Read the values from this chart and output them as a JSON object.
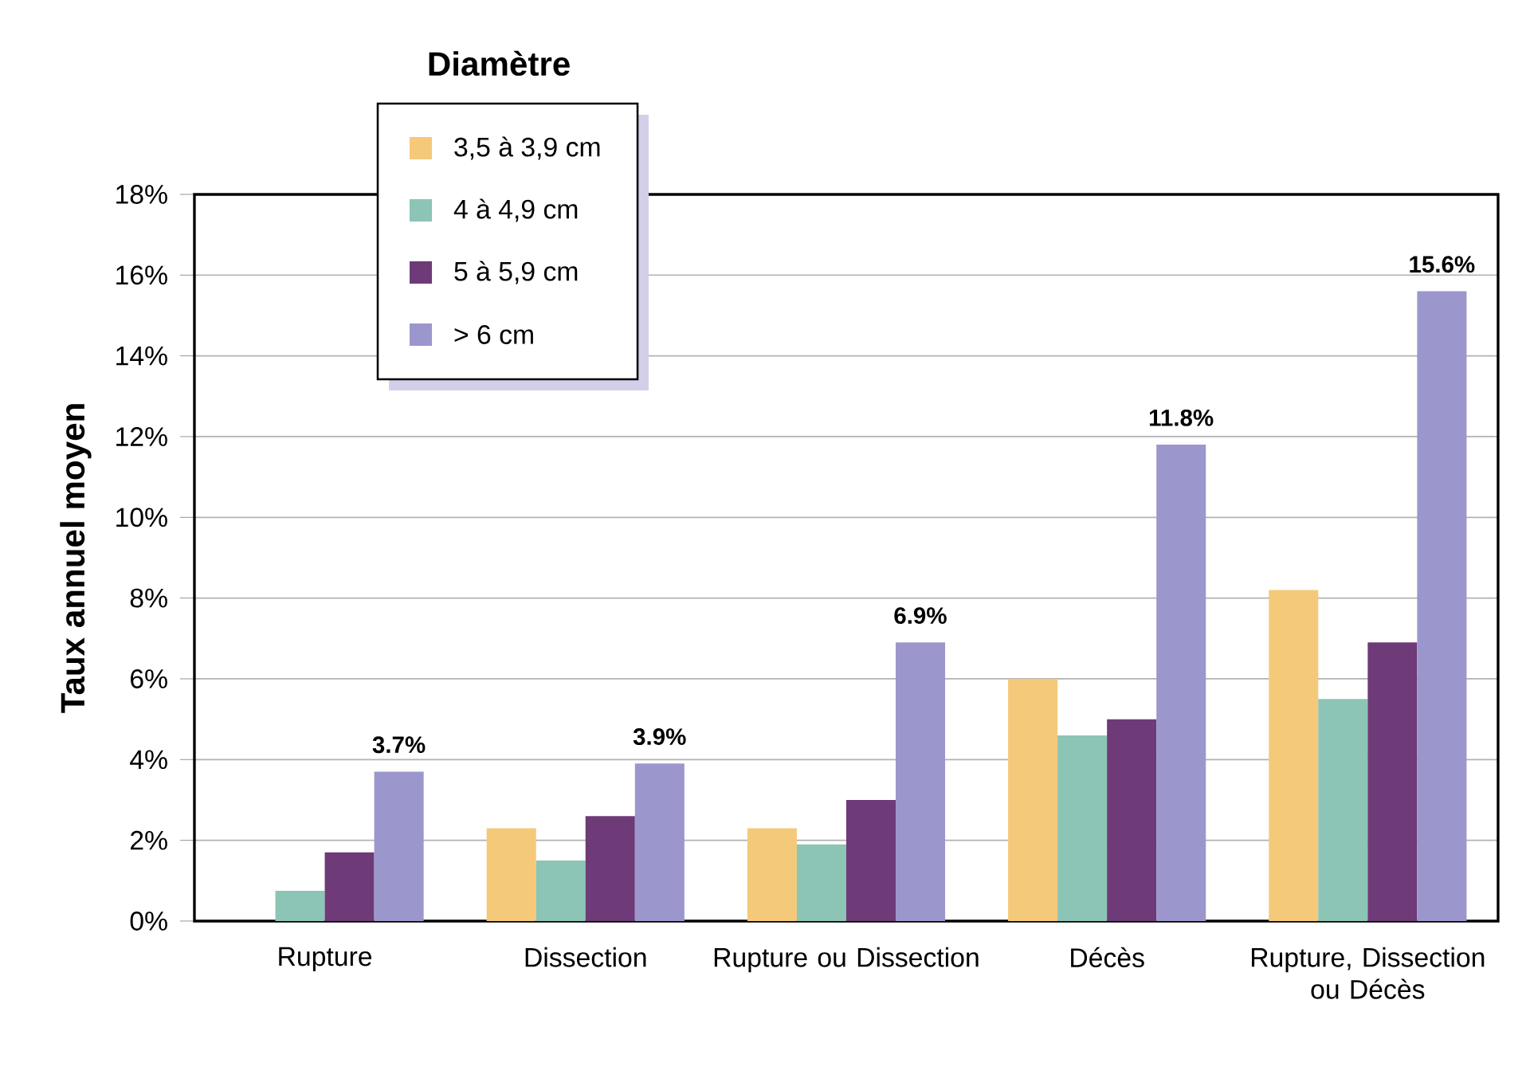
{
  "chart_data": {
    "type": "bar",
    "ylabel": "Taux annuel moyen",
    "legend_title": "Diamètre",
    "categories": [
      "Rupture",
      "Dissection",
      "Rupture ou Dissection",
      "Décès",
      "Rupture, Dissection ou Décès"
    ],
    "series": [
      {
        "name": "3,5 à 3,9 cm",
        "color": "#f5c97a",
        "values": [
          null,
          2.3,
          2.3,
          6.0,
          8.2
        ]
      },
      {
        "name": "4 à 4,9 cm",
        "color": "#8cc4b5",
        "values": [
          0.75,
          1.5,
          1.9,
          4.6,
          5.5
        ]
      },
      {
        "name": "5 à 5,9 cm",
        "color": "#6e3a78",
        "values": [
          1.7,
          2.6,
          3.0,
          5.0,
          6.9
        ]
      },
      {
        "name": "> 6 cm",
        "color": "#9b97cc",
        "values": [
          3.7,
          3.9,
          6.9,
          11.8,
          15.6
        ],
        "value_labels": [
          "3.7%",
          "3.9%",
          "6.9%",
          "11.8%",
          "15.6%"
        ]
      }
    ],
    "ylim": [
      0,
      18
    ],
    "yticks": [
      {
        "value": 0,
        "label": "0%"
      },
      {
        "value": 2,
        "label": "2%"
      },
      {
        "value": 4,
        "label": "4%"
      },
      {
        "value": 6,
        "label": "6%"
      },
      {
        "value": 8,
        "label": "8%"
      },
      {
        "value": 10,
        "label": "10%"
      },
      {
        "value": 12,
        "label": "12%"
      },
      {
        "value": 14,
        "label": "14%"
      },
      {
        "value": 16,
        "label": "16%"
      },
      {
        "value": 18,
        "label": "18%"
      }
    ],
    "grid": "y",
    "legend": "top left"
  }
}
